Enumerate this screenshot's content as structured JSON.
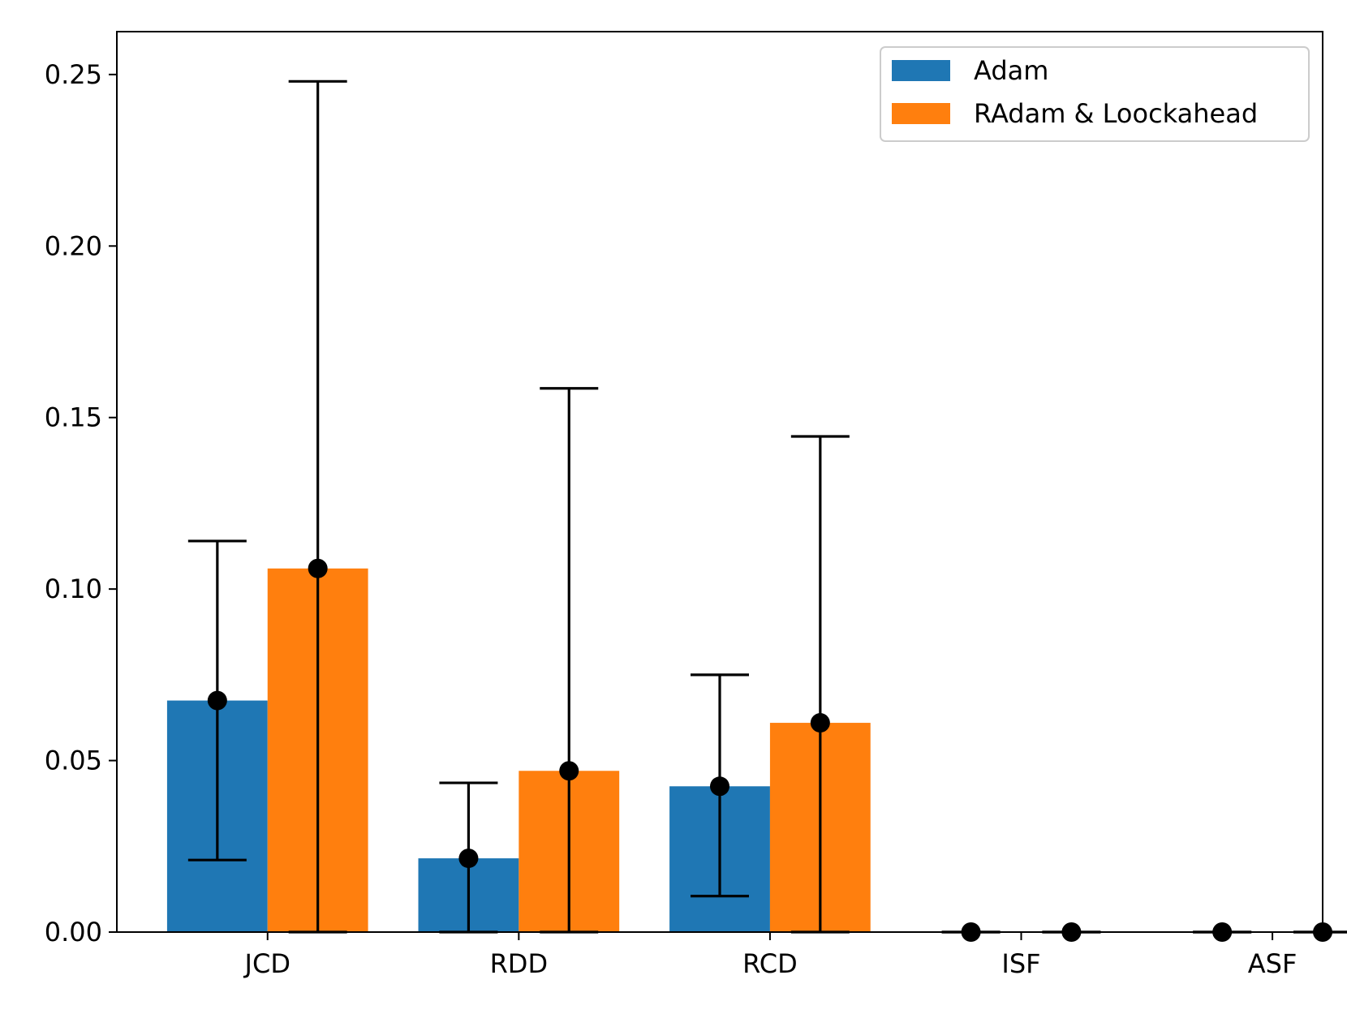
{
  "chart_data": {
    "type": "bar",
    "title": "",
    "xlabel": "",
    "ylabel": "",
    "categories": [
      "JCD",
      "RDD",
      "RCD",
      "ISF",
      "ASF"
    ],
    "ylim": [
      0,
      0.2625
    ],
    "yticks": [
      0.0,
      0.05,
      0.1,
      0.15,
      0.2,
      0.25
    ],
    "ytick_labels": [
      "0.00",
      "0.05",
      "0.10",
      "0.15",
      "0.20",
      "0.25"
    ],
    "legend_position": "top-right",
    "grid": false,
    "series": [
      {
        "name": "Adam",
        "color": "#1f77b4",
        "values": [
          0.0675,
          0.0215,
          0.0425,
          0.0,
          0.0
        ],
        "err_low": [
          0.021,
          0.0,
          0.0105,
          0.0,
          0.0
        ],
        "err_high": [
          0.114,
          0.0435,
          0.075,
          0.0,
          0.0
        ]
      },
      {
        "name": "RAdam & Loockahead",
        "color": "#ff7f0e",
        "values": [
          0.106,
          0.047,
          0.061,
          0.0,
          0.0
        ],
        "err_low": [
          0.0,
          0.0,
          0.0,
          0.0,
          0.0
        ],
        "err_high": [
          0.248,
          0.1585,
          0.1445,
          0.0,
          0.0
        ]
      }
    ]
  }
}
